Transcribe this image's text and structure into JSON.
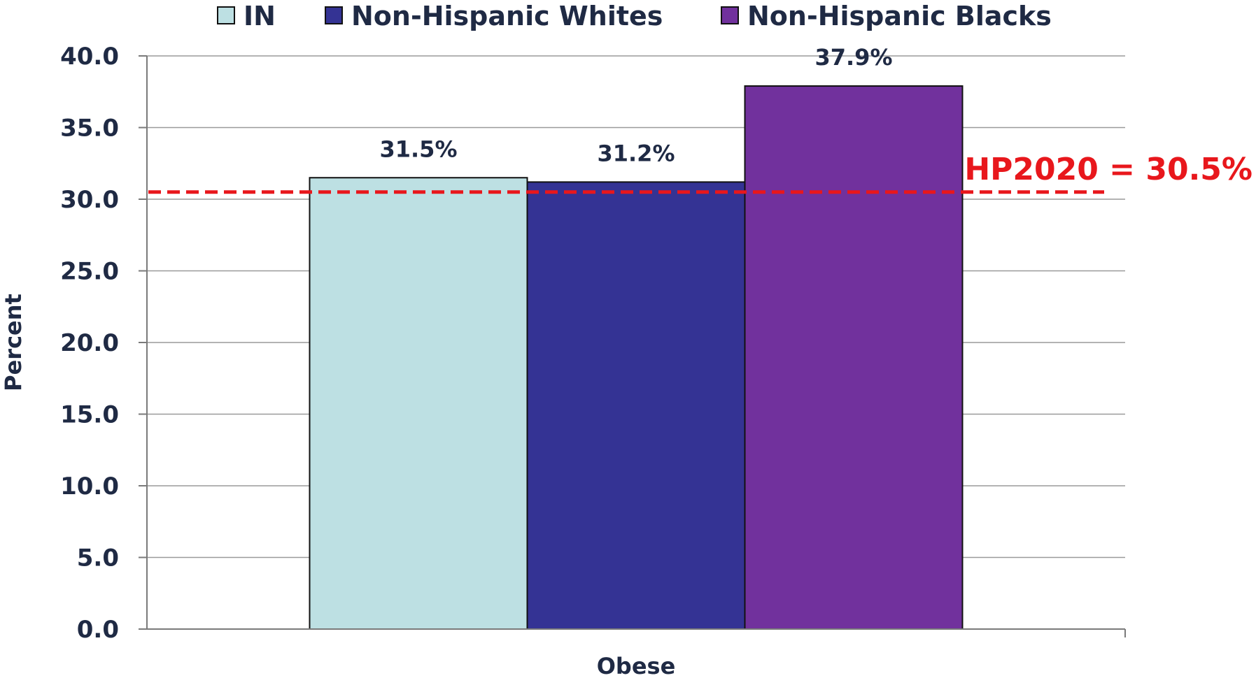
{
  "chart_data": {
    "type": "bar",
    "categories": [
      "Obese"
    ],
    "series": [
      {
        "name": "IN",
        "values": [
          31.5
        ],
        "labels": [
          "31.5%"
        ],
        "color": "#bde0e3"
      },
      {
        "name": "Non-Hispanic Whites",
        "values": [
          31.2
        ],
        "labels": [
          "31.2%"
        ],
        "color": "#343394"
      },
      {
        "name": "Non-Hispanic Blacks",
        "values": [
          37.9
        ],
        "labels": [
          "37.9%"
        ],
        "color": "#71319d"
      }
    ],
    "ylabel": "Percent",
    "xlabel": "",
    "ylim": [
      0,
      40
    ],
    "yticks": [
      0,
      5,
      10,
      15,
      20,
      25,
      30,
      35,
      40
    ],
    "ytick_labels": [
      "0.0",
      "5.0",
      "10.0",
      "15.0",
      "20.0",
      "25.0",
      "30.0",
      "35.0",
      "40.0"
    ],
    "grid": "horizontal",
    "legend_position": "top",
    "reference_line": {
      "value": 30.5,
      "label": "HP2020 = 30.5%",
      "color": "#e8171c",
      "style": "dashed"
    }
  }
}
